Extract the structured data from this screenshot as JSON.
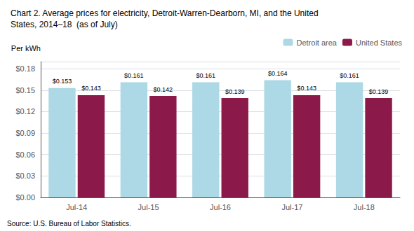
{
  "chart_data": {
    "type": "bar",
    "title": "Chart 2. Average prices for electricity, Detroit-Warren-Dearborn, MI, and the United\nStates, 2014–18  (as of July)",
    "y_label": "Per kWh",
    "source": "Source: U.S. Bureau of Labor Statistics.",
    "categories": [
      "Jul-14",
      "Jul-15",
      "Jul-16",
      "Jul-17",
      "Jul-18"
    ],
    "series": [
      {
        "name": "Detroit area",
        "color": "#add8e6",
        "values": [
          0.153,
          0.161,
          0.161,
          0.164,
          0.161
        ],
        "value_labels": [
          "$0.153",
          "$0.161",
          "$0.161",
          "$0.164",
          "$0.161"
        ]
      },
      {
        "name": "United States",
        "color": "#8b1a4a",
        "values": [
          0.143,
          0.142,
          0.139,
          0.143,
          0.139
        ],
        "value_labels": [
          "$0.143",
          "$0.142",
          "$0.139",
          "$0.143",
          "$0.139"
        ]
      }
    ],
    "ylim": [
      0.0,
      0.19
    ],
    "yticks": [
      {
        "value": 0.0,
        "label": "$0.00"
      },
      {
        "value": 0.03,
        "label": "$0.03"
      },
      {
        "value": 0.06,
        "label": "$0.06"
      },
      {
        "value": 0.09,
        "label": "$0.09"
      },
      {
        "value": 0.12,
        "label": "$0.12"
      },
      {
        "value": 0.15,
        "label": "$0.15"
      },
      {
        "value": 0.18,
        "label": "$0.18"
      }
    ],
    "grid": true,
    "legend": "upper right",
    "data_labels": true
  }
}
